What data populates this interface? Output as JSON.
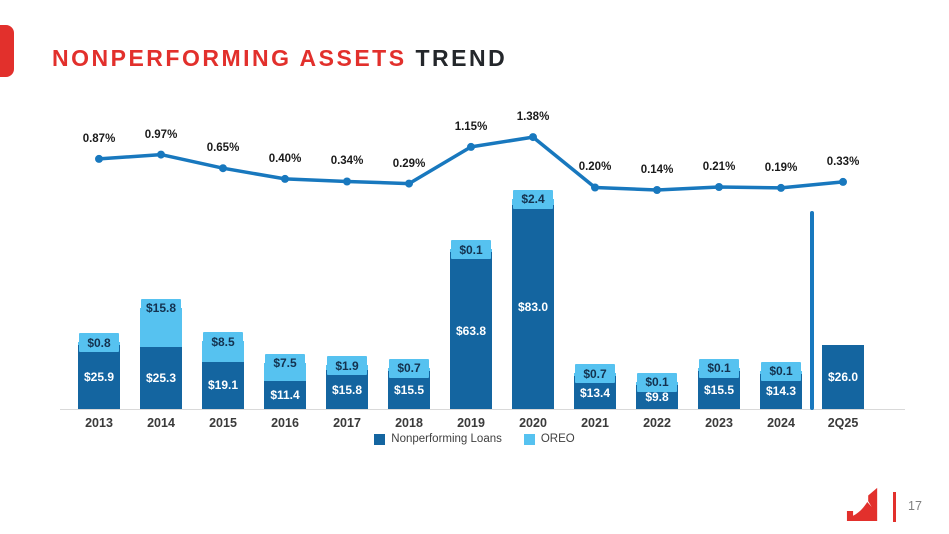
{
  "header": {
    "title_red": "NONPERFORMING ASSETS",
    "title_dark": "TREND"
  },
  "footer": {
    "page_number": "17"
  },
  "colors": {
    "accent_red": "#E2302C",
    "bar_dark": "#1465A0",
    "bar_light": "#56C2F0",
    "line": "#1878BE",
    "divider": "#1878BE"
  },
  "legend": {
    "items": [
      {
        "label": "Nonperforming Loans",
        "color": "#1465A0"
      },
      {
        "label": "OREO",
        "color": "#56C2F0"
      }
    ]
  },
  "chart_data": {
    "type": "bar",
    "stacked": true,
    "legend_position": "bottom",
    "grid": false,
    "categories": [
      "2013",
      "2014",
      "2015",
      "2016",
      "2017",
      "2018",
      "2019",
      "2020",
      "2021",
      "2022",
      "2023",
      "2024",
      "2Q25"
    ],
    "series": [
      {
        "name": "Nonperforming Loans",
        "color": "#1465A0",
        "values": [
          25.9,
          25.3,
          19.1,
          11.4,
          15.8,
          15.5,
          63.8,
          83.0,
          13.4,
          9.8,
          15.5,
          14.3,
          26.0
        ],
        "labels": [
          "$25.9",
          "$25.3",
          "$19.1",
          "$11.4",
          "$15.8",
          "$15.5",
          "$63.8",
          "$83.0",
          "$13.4",
          "$9.8",
          "$15.5",
          "$14.3",
          "$26.0"
        ]
      },
      {
        "name": "OREO",
        "color": "#56C2F0",
        "values": [
          0.8,
          15.8,
          8.5,
          7.5,
          1.9,
          0.7,
          0.1,
          2.4,
          0.7,
          0.1,
          0.1,
          0.1,
          null
        ],
        "labels": [
          "$0.8",
          "$15.8",
          "$8.5",
          "$7.5",
          "$1.9",
          "$0.7",
          "$0.1",
          "$2.4",
          "$0.7",
          "$0.1",
          "$0.1",
          "$0.1",
          null
        ]
      }
    ],
    "bar_ylim": [
      0,
      90
    ],
    "line_overlay": {
      "color": "#1878BE",
      "values_pct": [
        0.87,
        0.97,
        0.65,
        0.4,
        0.34,
        0.29,
        1.15,
        1.38,
        0.2,
        0.14,
        0.21,
        0.19,
        0.33
      ],
      "labels": [
        "0.87%",
        "0.97%",
        "0.65%",
        "0.40%",
        "0.34%",
        "0.29%",
        "1.15%",
        "1.38%",
        "0.20%",
        "0.14%",
        "0.21%",
        "0.19%",
        "0.33%"
      ],
      "ylim_pct": [
        0,
        1.5
      ]
    },
    "separator_before_category": "2Q25"
  }
}
